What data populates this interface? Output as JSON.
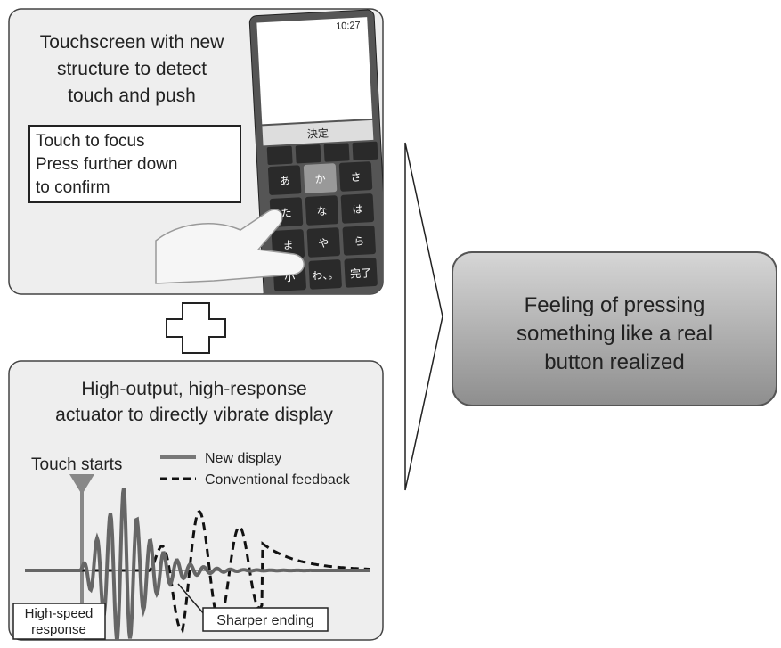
{
  "top_panel": {
    "title_lines": [
      "Touchscreen with new",
      "structure to detect",
      "touch and push"
    ],
    "note_lines": [
      "Touch to focus",
      "Press further down",
      "to confirm"
    ],
    "phone": {
      "clock": "10:27",
      "confirm_key": "決定",
      "keys": [
        "あ",
        "か",
        "さ",
        "た",
        "な",
        "は",
        "ま",
        "や",
        "ら",
        "小",
        "わ、。",
        "完了"
      ]
    }
  },
  "bottom_panel": {
    "title_lines": [
      "High-output, high-response",
      "actuator to directly vibrate display"
    ],
    "legend": [
      "New display",
      "Conventional feedback"
    ],
    "touch_marker": "Touch starts",
    "callouts": [
      {
        "lines": [
          "High-speed",
          "response"
        ]
      },
      {
        "lines": [
          "Sharper ending"
        ]
      }
    ]
  },
  "result": {
    "lines": [
      "Feeling of pressing",
      "something like a real",
      "button realized"
    ]
  }
}
